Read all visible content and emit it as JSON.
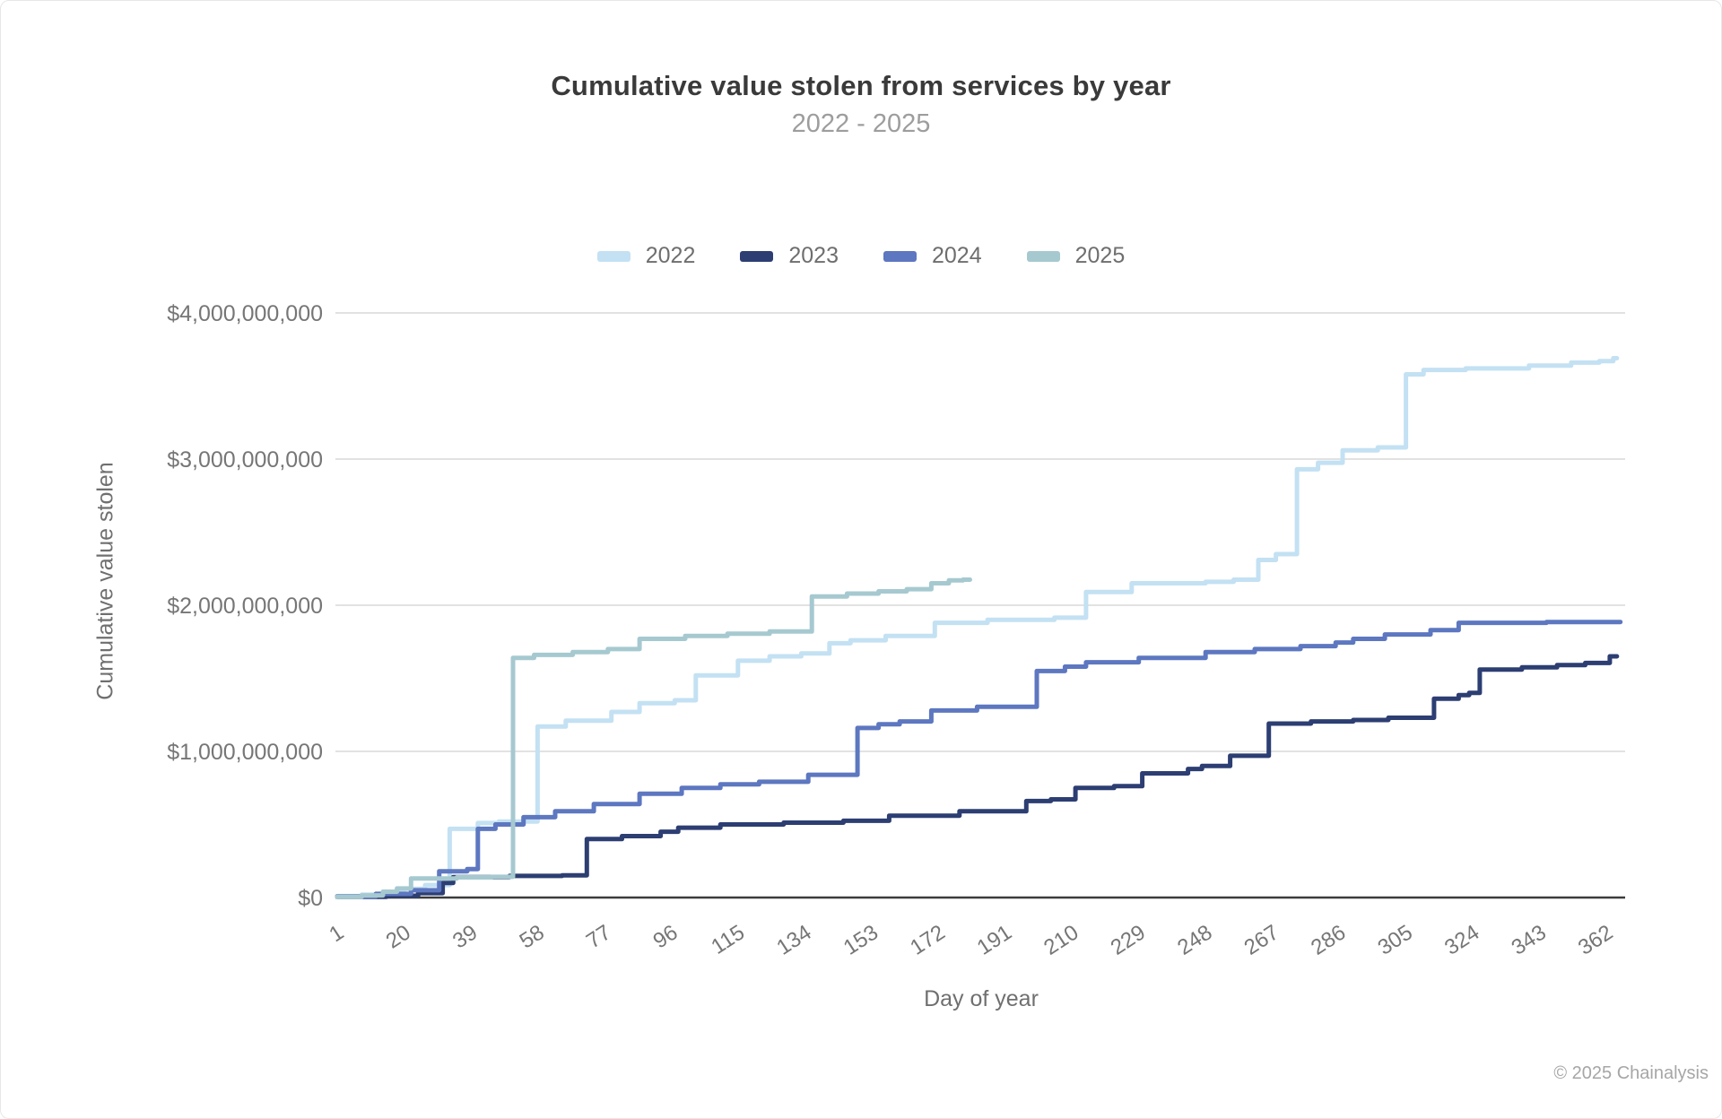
{
  "chart_data": {
    "type": "line",
    "step_interpolation": true,
    "title": "Cumulative value stolen from services by year",
    "subtitle": "2022 - 2025",
    "xlabel": "Day of year",
    "ylabel": "Cumulative value stolen",
    "units": "USD",
    "xlim": [
      1,
      366
    ],
    "ylim": [
      0,
      4000000000
    ],
    "grid": "horizontal-only",
    "legend_position": "top-center",
    "x_ticks": [
      1,
      20,
      39,
      58,
      77,
      96,
      115,
      134,
      153,
      172,
      191,
      210,
      229,
      248,
      267,
      286,
      305,
      324,
      343,
      362
    ],
    "y_ticks": [
      {
        "value": 0,
        "label": "$0"
      },
      {
        "value": 1000000000,
        "label": "$1,000,000,000"
      },
      {
        "value": 2000000000,
        "label": "$2,000,000,000"
      },
      {
        "value": 3000000000,
        "label": "$3,000,000,000"
      },
      {
        "value": 4000000000,
        "label": "$4,000,000,000"
      }
    ],
    "series": [
      {
        "name": "2022",
        "color": "#c3e1f3",
        "end_day": 365,
        "points": [
          [
            1,
            10000000
          ],
          [
            8,
            20000000
          ],
          [
            14,
            40000000
          ],
          [
            20,
            60000000
          ],
          [
            26,
            85000000
          ],
          [
            33,
            470000000
          ],
          [
            41,
            510000000
          ],
          [
            47,
            520000000
          ],
          [
            58,
            1170000000
          ],
          [
            66,
            1210000000
          ],
          [
            79,
            1270000000
          ],
          [
            87,
            1330000000
          ],
          [
            97,
            1350000000
          ],
          [
            103,
            1520000000
          ],
          [
            115,
            1620000000
          ],
          [
            124,
            1650000000
          ],
          [
            133,
            1670000000
          ],
          [
            141,
            1740000000
          ],
          [
            147,
            1760000000
          ],
          [
            157,
            1790000000
          ],
          [
            171,
            1880000000
          ],
          [
            186,
            1900000000
          ],
          [
            205,
            1915000000
          ],
          [
            214,
            2090000000
          ],
          [
            227,
            2150000000
          ],
          [
            248,
            2160000000
          ],
          [
            256,
            2175000000
          ],
          [
            263,
            2310000000
          ],
          [
            268,
            2350000000
          ],
          [
            274,
            2930000000
          ],
          [
            280,
            2975000000
          ],
          [
            287,
            3060000000
          ],
          [
            297,
            3080000000
          ],
          [
            305,
            3580000000
          ],
          [
            310,
            3610000000
          ],
          [
            322,
            3620000000
          ],
          [
            340,
            3640000000
          ],
          [
            352,
            3660000000
          ],
          [
            360,
            3670000000
          ],
          [
            364,
            3690000000
          ]
        ]
      },
      {
        "name": "2023",
        "color": "#2c3e72",
        "end_day": 365,
        "points": [
          [
            1,
            5000000
          ],
          [
            15,
            12000000
          ],
          [
            24,
            30000000
          ],
          [
            31,
            100000000
          ],
          [
            34,
            140000000
          ],
          [
            50,
            148000000
          ],
          [
            65,
            152000000
          ],
          [
            72,
            400000000
          ],
          [
            82,
            420000000
          ],
          [
            93,
            450000000
          ],
          [
            98,
            478000000
          ],
          [
            110,
            500000000
          ],
          [
            128,
            512000000
          ],
          [
            145,
            525000000
          ],
          [
            158,
            560000000
          ],
          [
            178,
            590000000
          ],
          [
            197,
            660000000
          ],
          [
            204,
            672000000
          ],
          [
            211,
            750000000
          ],
          [
            222,
            762000000
          ],
          [
            230,
            850000000
          ],
          [
            243,
            880000000
          ],
          [
            247,
            900000000
          ],
          [
            255,
            970000000
          ],
          [
            266,
            1190000000
          ],
          [
            278,
            1205000000
          ],
          [
            290,
            1215000000
          ],
          [
            300,
            1230000000
          ],
          [
            313,
            1360000000
          ],
          [
            320,
            1385000000
          ],
          [
            323,
            1400000000
          ],
          [
            326,
            1560000000
          ],
          [
            338,
            1575000000
          ],
          [
            348,
            1590000000
          ],
          [
            356,
            1605000000
          ],
          [
            363,
            1650000000
          ]
        ]
      },
      {
        "name": "2024",
        "color": "#5d77c0",
        "end_day": 366,
        "points": [
          [
            1,
            8000000
          ],
          [
            12,
            25000000
          ],
          [
            22,
            50000000
          ],
          [
            30,
            180000000
          ],
          [
            38,
            195000000
          ],
          [
            41,
            470000000
          ],
          [
            46,
            500000000
          ],
          [
            54,
            550000000
          ],
          [
            63,
            590000000
          ],
          [
            74,
            640000000
          ],
          [
            87,
            710000000
          ],
          [
            99,
            750000000
          ],
          [
            110,
            775000000
          ],
          [
            121,
            792000000
          ],
          [
            135,
            840000000
          ],
          [
            149,
            1160000000
          ],
          [
            155,
            1185000000
          ],
          [
            161,
            1205000000
          ],
          [
            170,
            1280000000
          ],
          [
            183,
            1305000000
          ],
          [
            200,
            1550000000
          ],
          [
            208,
            1580000000
          ],
          [
            214,
            1610000000
          ],
          [
            229,
            1640000000
          ],
          [
            248,
            1680000000
          ],
          [
            262,
            1700000000
          ],
          [
            275,
            1720000000
          ],
          [
            285,
            1745000000
          ],
          [
            290,
            1770000000
          ],
          [
            299,
            1800000000
          ],
          [
            312,
            1830000000
          ],
          [
            320,
            1880000000
          ],
          [
            345,
            1885000000
          ]
        ]
      },
      {
        "name": "2025",
        "color": "#a6c9d0",
        "end_day": 181,
        "points": [
          [
            1,
            5000000
          ],
          [
            8,
            15000000
          ],
          [
            14,
            40000000
          ],
          [
            18,
            62000000
          ],
          [
            22,
            130000000
          ],
          [
            35,
            138000000
          ],
          [
            45,
            142000000
          ],
          [
            51,
            1640000000
          ],
          [
            57,
            1660000000
          ],
          [
            68,
            1680000000
          ],
          [
            78,
            1700000000
          ],
          [
            87,
            1770000000
          ],
          [
            100,
            1790000000
          ],
          [
            112,
            1805000000
          ],
          [
            124,
            1820000000
          ],
          [
            136,
            2060000000
          ],
          [
            146,
            2080000000
          ],
          [
            155,
            2095000000
          ],
          [
            163,
            2110000000
          ],
          [
            170,
            2150000000
          ],
          [
            175,
            2170000000
          ],
          [
            179,
            2175000000
          ]
        ]
      }
    ]
  },
  "legend": {
    "items": [
      {
        "label": "2022",
        "color": "#c3e1f3"
      },
      {
        "label": "2023",
        "color": "#2c3e72"
      },
      {
        "label": "2024",
        "color": "#5d77c0"
      },
      {
        "label": "2025",
        "color": "#a6c9d0"
      }
    ]
  },
  "footer": {
    "copyright": "© 2025 Chainalysis"
  },
  "style_colors": {
    "grid_line": "#d8d8d8",
    "zero_axis": "#3b3b3b",
    "tick_text": "#767676",
    "axis_title_text": "#6f6f6f",
    "title_text": "#3a3a3a",
    "subtitle_text": "#9d9d9d",
    "footer_text": "#a6a6a6"
  }
}
